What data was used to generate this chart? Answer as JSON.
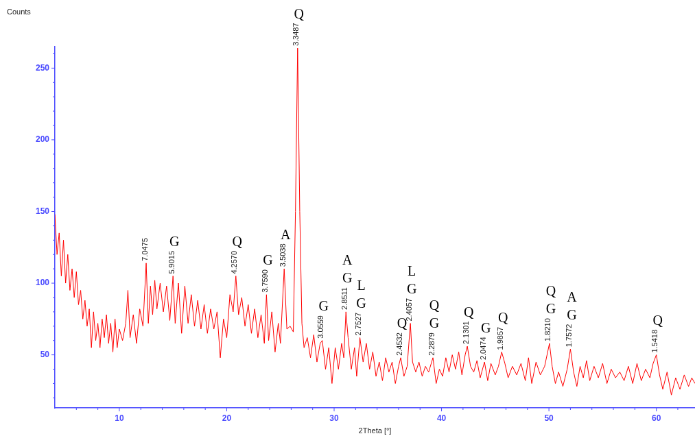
{
  "chart_data": {
    "type": "line",
    "xlabel": "2Theta [°]",
    "ylabel": "Counts",
    "xlim": [
      4,
      63.6
    ],
    "ylim": [
      13,
      265
    ],
    "xticks": [
      {
        "value": 6,
        "label": null
      },
      {
        "value": 8,
        "label": null
      },
      10,
      {
        "value": 12,
        "label": null
      },
      {
        "value": 14,
        "label": null
      },
      {
        "value": 16,
        "label": null
      },
      {
        "value": 18,
        "label": null
      },
      20,
      {
        "value": 22,
        "label": null
      },
      {
        "value": 24,
        "label": null
      },
      {
        "value": 26,
        "label": null
      },
      {
        "value": 28,
        "label": null
      },
      30,
      {
        "value": 32,
        "label": null
      },
      {
        "value": 34,
        "label": null
      },
      {
        "value": 36,
        "label": null
      },
      {
        "value": 38,
        "label": null
      },
      40,
      {
        "value": 42,
        "label": null
      },
      {
        "value": 44,
        "label": null
      },
      {
        "value": 46,
        "label": null
      },
      {
        "value": 48,
        "label": null
      },
      50,
      {
        "value": 52,
        "label": null
      },
      {
        "value": 54,
        "label": null
      },
      {
        "value": 56,
        "label": null
      },
      {
        "value": 58,
        "label": null
      },
      60,
      {
        "value": 62,
        "label": null
      }
    ],
    "yticks": [
      {
        "value": 20,
        "label": null
      },
      {
        "value": 30,
        "label": null
      },
      {
        "value": 40,
        "label": null
      },
      50,
      {
        "value": 60,
        "label": null
      },
      {
        "value": 70,
        "label": null
      },
      {
        "value": 80,
        "label": null
      },
      {
        "value": 90,
        "label": null
      },
      100,
      {
        "value": 110,
        "label": null
      },
      {
        "value": 120,
        "label": null
      },
      {
        "value": 130,
        "label": null
      },
      {
        "value": 140,
        "label": null
      },
      150,
      {
        "value": 160,
        "label": null
      },
      {
        "value": 170,
        "label": null
      },
      {
        "value": 180,
        "label": null
      },
      {
        "value": 190,
        "label": null
      },
      200,
      {
        "value": 210,
        "label": null
      },
      {
        "value": 220,
        "label": null
      },
      {
        "value": 230,
        "label": null
      },
      {
        "value": 240,
        "label": null
      },
      250,
      {
        "value": 260,
        "label": null
      }
    ],
    "grid": false,
    "legend": false,
    "marker": "none",
    "line_style": "solid",
    "series": [
      {
        "color": "#ff0000",
        "x": [
          4.0,
          4.2,
          4.4,
          4.6,
          4.8,
          5.0,
          5.2,
          5.4,
          5.6,
          5.8,
          6.0,
          6.2,
          6.4,
          6.6,
          6.8,
          7.0,
          7.2,
          7.4,
          7.6,
          7.8,
          8.0,
          8.2,
          8.4,
          8.6,
          8.8,
          9.0,
          9.2,
          9.4,
          9.6,
          9.8,
          10.0,
          10.3,
          10.6,
          10.8,
          11.0,
          11.3,
          11.6,
          11.9,
          12.2,
          12.5,
          12.7,
          12.9,
          13.1,
          13.3,
          13.5,
          13.8,
          14.1,
          14.4,
          14.7,
          15.0,
          15.2,
          15.5,
          15.8,
          16.1,
          16.4,
          16.7,
          17.0,
          17.3,
          17.6,
          17.9,
          18.2,
          18.5,
          18.8,
          19.1,
          19.4,
          19.7,
          20.0,
          20.3,
          20.6,
          20.85,
          21.1,
          21.4,
          21.7,
          22.0,
          22.3,
          22.6,
          22.9,
          23.2,
          23.5,
          23.7,
          23.9,
          24.2,
          24.5,
          24.8,
          25.0,
          25.35,
          25.6,
          25.9,
          26.2,
          26.4,
          26.6,
          26.8,
          27.0,
          27.2,
          27.5,
          27.8,
          28.1,
          28.4,
          28.7,
          28.9,
          29.2,
          29.5,
          29.8,
          30.1,
          30.4,
          30.7,
          30.9,
          31.1,
          31.3,
          31.6,
          31.9,
          32.1,
          32.4,
          32.7,
          33.0,
          33.3,
          33.6,
          33.9,
          34.2,
          34.5,
          34.8,
          35.1,
          35.4,
          35.7,
          36.0,
          36.2,
          36.5,
          36.8,
          37.1,
          37.3,
          37.6,
          37.9,
          38.2,
          38.5,
          38.8,
          39.2,
          39.5,
          39.8,
          40.1,
          40.4,
          40.7,
          41.0,
          41.3,
          41.6,
          41.9,
          42.2,
          42.4,
          42.7,
          43.0,
          43.3,
          43.6,
          44.0,
          44.3,
          44.6,
          45.0,
          45.3,
          45.6,
          45.9,
          46.2,
          46.6,
          47.0,
          47.4,
          47.8,
          48.1,
          48.4,
          48.8,
          49.2,
          49.6,
          50.05,
          50.3,
          50.6,
          50.9,
          51.3,
          51.7,
          52.0,
          52.3,
          52.6,
          52.9,
          53.2,
          53.5,
          53.8,
          54.2,
          54.6,
          55.0,
          55.4,
          55.8,
          56.2,
          56.6,
          57.0,
          57.4,
          57.8,
          58.2,
          58.6,
          59.0,
          59.4,
          59.7,
          60.0,
          60.3,
          60.6,
          61.0,
          61.4,
          61.8,
          62.2,
          62.6,
          63.0,
          63.3,
          63.6
        ],
        "values": [
          148,
          120,
          135,
          105,
          130,
          100,
          120,
          95,
          110,
          90,
          108,
          85,
          95,
          75,
          88,
          70,
          82,
          55,
          80,
          60,
          72,
          55,
          75,
          62,
          78,
          58,
          72,
          52,
          75,
          55,
          68,
          60,
          72,
          95,
          62,
          78,
          58,
          82,
          70,
          114,
          72,
          98,
          78,
          102,
          82,
          100,
          80,
          98,
          74,
          105,
          72,
          100,
          65,
          98,
          72,
          92,
          70,
          88,
          68,
          85,
          65,
          82,
          68,
          80,
          48,
          75,
          62,
          92,
          80,
          105,
          78,
          90,
          70,
          85,
          65,
          82,
          62,
          78,
          58,
          92,
          60,
          80,
          52,
          72,
          58,
          110,
          68,
          70,
          66,
          150,
          264,
          150,
          72,
          55,
          62,
          48,
          64,
          45,
          58,
          60,
          40,
          55,
          30,
          55,
          40,
          58,
          48,
          80,
          62,
          40,
          55,
          35,
          62,
          45,
          58,
          40,
          52,
          35,
          45,
          32,
          48,
          38,
          45,
          30,
          42,
          48,
          35,
          42,
          72,
          45,
          38,
          45,
          35,
          42,
          38,
          48,
          30,
          40,
          35,
          48,
          38,
          50,
          40,
          52,
          36,
          50,
          56,
          42,
          38,
          46,
          34,
          45,
          32,
          44,
          36,
          42,
          52,
          44,
          34,
          42,
          36,
          44,
          32,
          48,
          30,
          45,
          36,
          42,
          58,
          42,
          30,
          38,
          28,
          40,
          54,
          38,
          28,
          42,
          34,
          46,
          32,
          42,
          34,
          44,
          30,
          40,
          34,
          38,
          32,
          42,
          30,
          44,
          32,
          40,
          34,
          44,
          50,
          36,
          26,
          38,
          22,
          34,
          26,
          36,
          28,
          34,
          30
        ]
      }
    ],
    "annotations": [
      {
        "text": "7.0475",
        "x": 12.5,
        "y": 114
      },
      {
        "text": "5.9015",
        "x": 15.0,
        "y": 105
      },
      "G",
      {
        "text": "4.2570",
        "x": 20.85,
        "y": 105
      },
      "Q",
      {
        "text": "3.7590",
        "x": 23.7,
        "y": 92
      },
      "G",
      {
        "text": "3.5038",
        "x": 25.35,
        "y": 110
      },
      "A",
      {
        "text": "3.3487",
        "x": 26.6,
        "y": 264
      },
      "Q",
      {
        "text": "3.0559",
        "x": 28.9,
        "y": 60
      },
      "G",
      {
        "text": "2.8511",
        "x": 31.1,
        "y": 80
      },
      "G",
      "A",
      {
        "text": "2.7527",
        "x": 32.4,
        "y": 62
      },
      "G",
      "L",
      {
        "text": "2.4532",
        "x": 36.2,
        "y": 48
      },
      "Q",
      {
        "text": "2.4057",
        "x": 37.1,
        "y": 72
      },
      "G",
      "L",
      {
        "text": "2.2879",
        "x": 39.2,
        "y": 48
      },
      "G",
      "Q",
      {
        "text": "2.1301",
        "x": 42.4,
        "y": 56
      },
      "Q",
      {
        "text": "2.0474",
        "x": 44.0,
        "y": 45
      },
      "G",
      {
        "text": "1.9857",
        "x": 45.6,
        "y": 52
      },
      "Q",
      {
        "text": "1.8210",
        "x": 50.05,
        "y": 58
      },
      "G",
      "Q",
      {
        "text": "1.7572",
        "x": 52.0,
        "y": 54
      },
      "G",
      "A",
      {
        "text": "1.5418",
        "x": 60.0,
        "y": 50
      },
      "Q"
    ]
  }
}
